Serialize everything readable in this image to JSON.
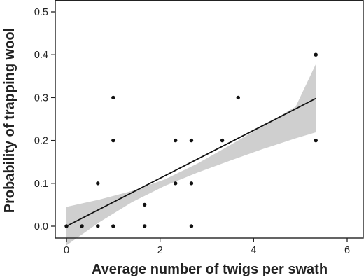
{
  "chart_data": {
    "type": "scatter",
    "title": "",
    "xlabel": "Average number of twigs per swath",
    "ylabel": "Probability of trapping wool",
    "xlim": [
      -0.35,
      6.25
    ],
    "ylim": [
      -0.025,
      0.525
    ],
    "xticks": [
      0,
      2,
      4,
      6
    ],
    "yticks": [
      0.0,
      0.1,
      0.2,
      0.3,
      0.4,
      0.5
    ],
    "xtick_labels": [
      "0",
      "2",
      "4",
      "6"
    ],
    "ytick_labels": [
      "0.0",
      "0.1",
      "0.2",
      "0.3",
      "0.4",
      "0.5"
    ],
    "grid": false,
    "series": [
      {
        "x": [
          0.0,
          0.33,
          0.67,
          0.67,
          1.0,
          1.0,
          1.0,
          1.67,
          1.67,
          2.33,
          2.33,
          2.67,
          2.67,
          2.67,
          3.33,
          3.67,
          5.33,
          5.33
        ],
        "y": [
          0.0,
          0.0,
          0.0,
          0.1,
          0.0,
          0.2,
          0.3,
          0.0,
          0.05,
          0.1,
          0.2,
          0.0,
          0.1,
          0.2,
          0.2,
          0.3,
          0.2,
          0.4
        ]
      }
    ],
    "fit_line": {
      "x": [
        0.0,
        5.33
      ],
      "y": [
        0.0,
        0.298
      ]
    },
    "confidence_band": {
      "x": [
        0.0,
        0.7,
        1.4,
        2.1,
        2.8,
        3.5,
        4.2,
        4.9,
        5.33
      ],
      "lower": [
        -0.045,
        0.009,
        0.056,
        0.094,
        0.125,
        0.153,
        0.18,
        0.205,
        0.219
      ],
      "upper": [
        0.045,
        0.062,
        0.082,
        0.109,
        0.146,
        0.189,
        0.234,
        0.279,
        0.378
      ]
    },
    "colors": {
      "points": "#111111",
      "line": "#111111",
      "band": "#cfcfcf",
      "axis": "#222222"
    }
  }
}
